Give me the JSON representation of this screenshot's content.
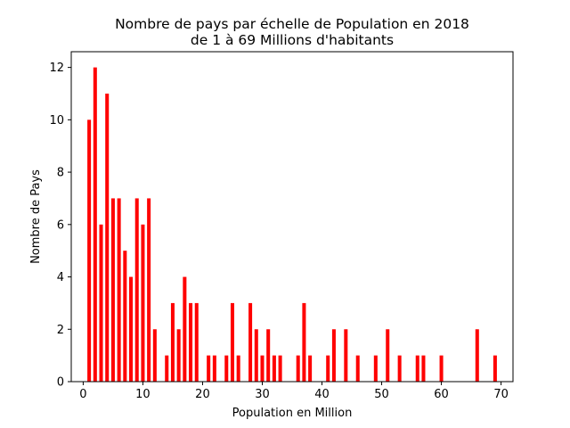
{
  "chart_data": {
    "type": "bar",
    "title_line1": "Nombre de pays par échelle de Population en 2018",
    "title_line2": "de 1 à 69 Millions d'habitants",
    "xlabel": "Population en Million",
    "ylabel": "Nombre de Pays",
    "xlim": [
      -2,
      72
    ],
    "ylim": [
      0,
      12.6
    ],
    "xticks": [
      0,
      10,
      20,
      30,
      40,
      50,
      60,
      70
    ],
    "yticks": [
      0,
      2,
      4,
      6,
      8,
      10,
      12
    ],
    "grid": false,
    "bar_color": "#ff0000",
    "x": [
      1,
      2,
      3,
      4,
      5,
      6,
      7,
      8,
      9,
      10,
      11,
      12,
      14,
      15,
      16,
      17,
      18,
      19,
      21,
      22,
      24,
      25,
      26,
      28,
      29,
      30,
      31,
      32,
      33,
      36,
      37,
      38,
      41,
      42,
      44,
      46,
      49,
      51,
      53,
      56,
      57,
      60,
      66,
      69
    ],
    "values": [
      10,
      12,
      6,
      11,
      7,
      7,
      5,
      4,
      7,
      6,
      7,
      2,
      1,
      3,
      2,
      4,
      3,
      3,
      1,
      1,
      1,
      3,
      1,
      3,
      2,
      1,
      2,
      1,
      1,
      1,
      3,
      1,
      1,
      2,
      2,
      1,
      1,
      2,
      1,
      1,
      1,
      1,
      2,
      1
    ]
  }
}
